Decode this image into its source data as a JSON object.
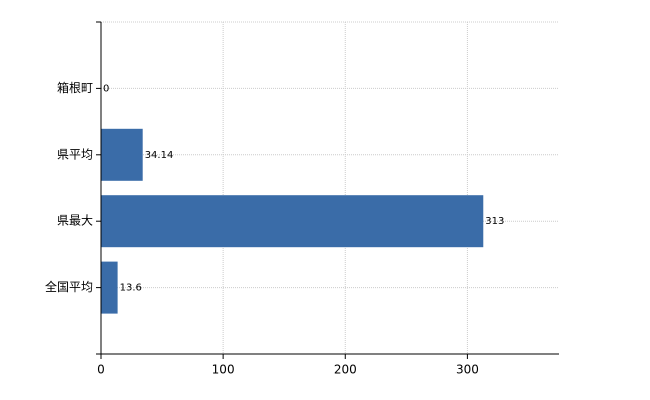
{
  "chart_data": {
    "type": "bar",
    "orientation": "horizontal",
    "categories": [
      "箱根町",
      "県平均",
      "県最大",
      "全国平均"
    ],
    "values": [
      0,
      34.14,
      313,
      13.6
    ],
    "color": "#3a6ca8",
    "xlim": [
      0,
      375
    ],
    "xticks": [
      0,
      100,
      200,
      300
    ],
    "grid": true
  }
}
